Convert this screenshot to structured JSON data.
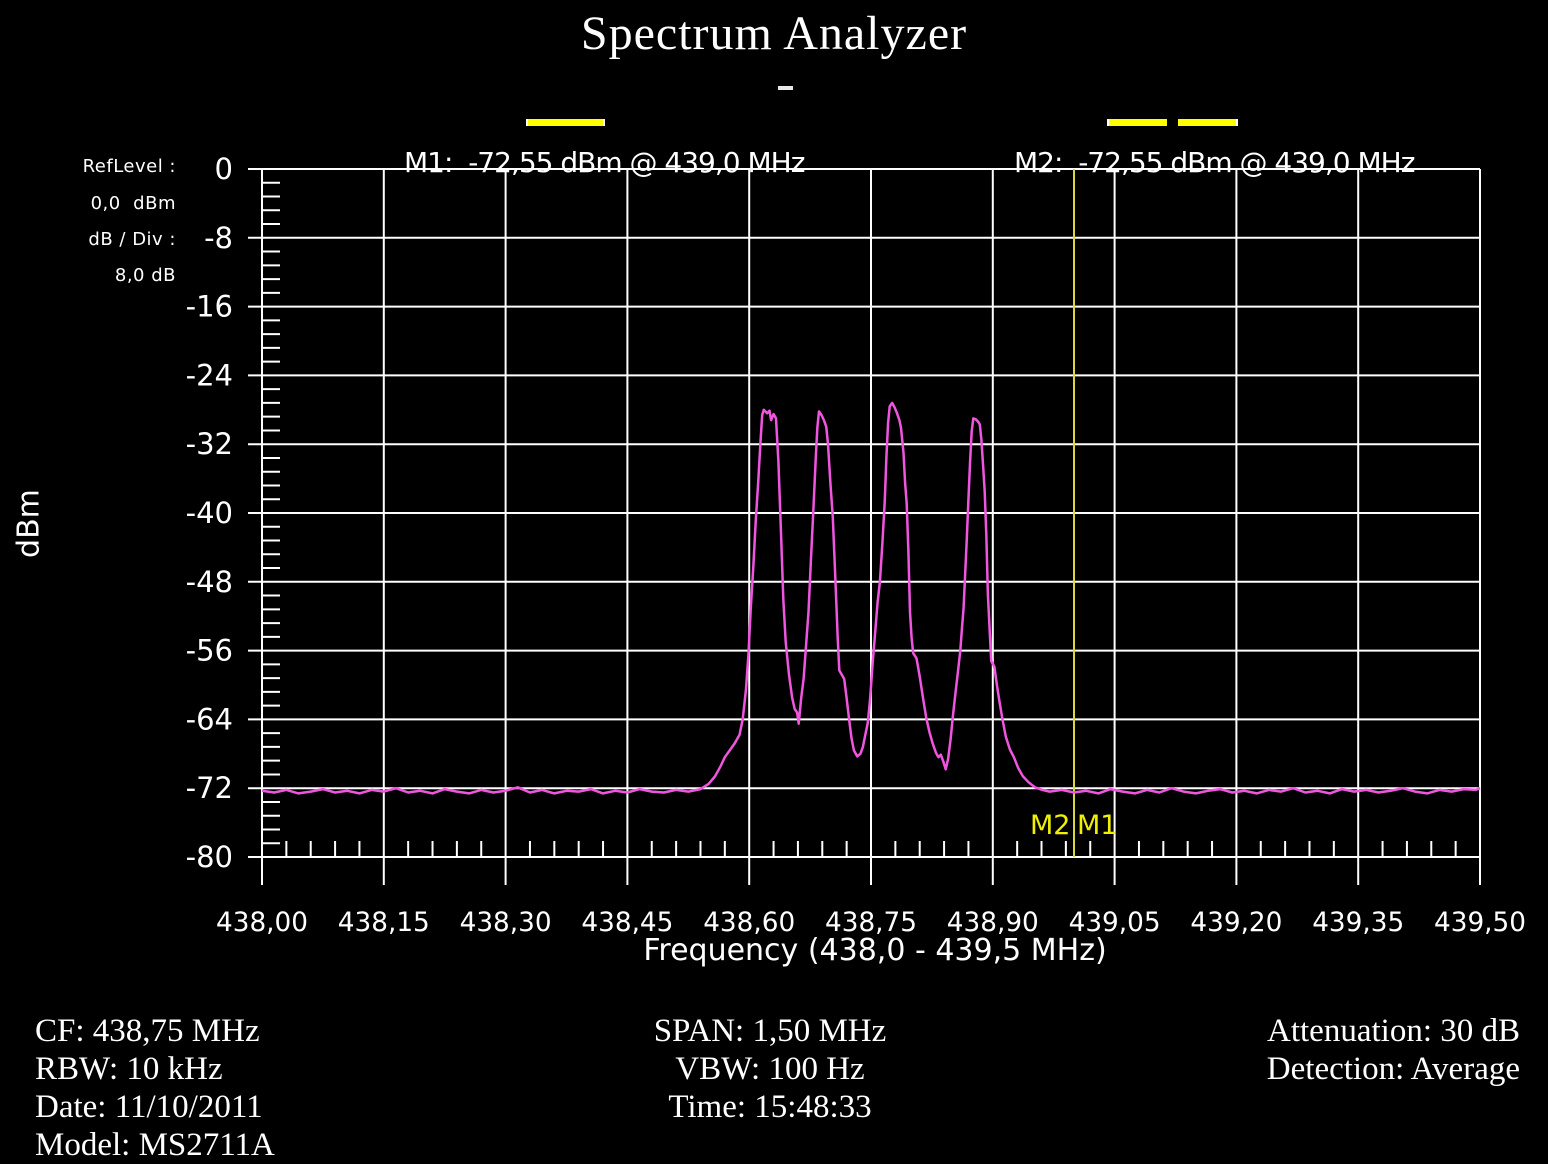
{
  "title": "Spectrum Analyzer",
  "colors": {
    "background": "#000000",
    "grid": "#ffffff",
    "text": "#ffffff",
    "trace": "#f055e0",
    "marker_line": "#d8d83a",
    "marker_accent": "#ffff00"
  },
  "markers": {
    "m1_readout": "M1:  -72,55 dBm @ 439,0 MHz",
    "m2_readout": "M2:  -72,55 dBm @ 439,0 MHz",
    "m2_flag": "M2",
    "m1_flag": "M1"
  },
  "left_panel": {
    "ref_level_label": "RefLevel :",
    "ref_level_value": "0,0  dBm",
    "db_div_label": "dB / Div :",
    "db_div_value": "8,0 dB"
  },
  "footer": {
    "left": [
      "CF: 438,75 MHz",
      "RBW: 10 kHz",
      "Date: 11/10/2011",
      "Model: MS2711A"
    ],
    "center": [
      "SPAN: 1,50 MHz",
      "VBW: 100 Hz",
      "Time: 15:48:33"
    ],
    "right": [
      "Attenuation: 30 dB",
      "Detection: Average"
    ]
  },
  "chart_data": {
    "type": "line",
    "title": "Spectrum Analyzer",
    "xlabel": "Frequency (438,0 - 439,5 MHz)",
    "ylabel": "dBm",
    "xlim": [
      438.0,
      439.5
    ],
    "ylim": [
      -80,
      0
    ],
    "grid": true,
    "minor_ticks_per_division": 5,
    "x_ticks": {
      "values": [
        438.0,
        438.15,
        438.3,
        438.45,
        438.6,
        438.75,
        438.9,
        439.05,
        439.2,
        439.35,
        439.5
      ],
      "labels": [
        "438,00",
        "438,15",
        "438,30",
        "438,45",
        "438,60",
        "438,75",
        "438,90",
        "439,05",
        "439,20",
        "439,35",
        "439,50"
      ]
    },
    "y_ticks": {
      "values": [
        0,
        -8,
        -16,
        -24,
        -32,
        -40,
        -48,
        -56,
        -64,
        -72,
        -80
      ],
      "labels": [
        "0",
        "-8",
        "-16",
        "-24",
        "-32",
        "-40",
        "-48",
        "-56",
        "-64",
        "-72",
        "-80"
      ]
    },
    "ref_level_dbm": 0.0,
    "db_per_div": 8.0,
    "marker_line_mhz": 439.0,
    "noise_floor_dbm": -72.5,
    "peaks_mhz_dbm": [
      [
        438.62,
        -28.0
      ],
      [
        438.69,
        -28.2
      ],
      [
        438.78,
        -27.1
      ],
      [
        438.87,
        -29.0
      ]
    ],
    "series": [
      {
        "name": "trace",
        "color": "#f055e0",
        "points": [
          [
            438.0,
            -72.3
          ],
          [
            438.015,
            -72.5
          ],
          [
            438.03,
            -72.2
          ],
          [
            438.045,
            -72.6
          ],
          [
            438.06,
            -72.4
          ],
          [
            438.075,
            -72.1
          ],
          [
            438.09,
            -72.5
          ],
          [
            438.105,
            -72.3
          ],
          [
            438.12,
            -72.6
          ],
          [
            438.135,
            -72.2
          ],
          [
            438.15,
            -72.4
          ],
          [
            438.165,
            -72.0
          ],
          [
            438.18,
            -72.5
          ],
          [
            438.195,
            -72.3
          ],
          [
            438.21,
            -72.6
          ],
          [
            438.225,
            -72.1
          ],
          [
            438.24,
            -72.4
          ],
          [
            438.255,
            -72.6
          ],
          [
            438.27,
            -72.2
          ],
          [
            438.285,
            -72.5
          ],
          [
            438.3,
            -72.3
          ],
          [
            438.315,
            -71.9
          ],
          [
            438.33,
            -72.5
          ],
          [
            438.345,
            -72.2
          ],
          [
            438.36,
            -72.6
          ],
          [
            438.375,
            -72.3
          ],
          [
            438.39,
            -72.4
          ],
          [
            438.405,
            -72.1
          ],
          [
            438.42,
            -72.6
          ],
          [
            438.435,
            -72.3
          ],
          [
            438.45,
            -72.5
          ],
          [
            438.465,
            -72.1
          ],
          [
            438.48,
            -72.4
          ],
          [
            438.495,
            -72.5
          ],
          [
            438.51,
            -72.2
          ],
          [
            438.525,
            -72.4
          ],
          [
            438.54,
            -72.1
          ],
          [
            438.55,
            -71.5
          ],
          [
            438.558,
            -70.6
          ],
          [
            438.565,
            -69.4
          ],
          [
            438.57,
            -68.4
          ],
          [
            438.576,
            -67.6
          ],
          [
            438.582,
            -66.8
          ],
          [
            438.588,
            -65.8
          ],
          [
            438.592,
            -64.0
          ],
          [
            438.596,
            -60.5
          ],
          [
            438.599,
            -56.5
          ],
          [
            438.602,
            -51.0
          ],
          [
            438.605,
            -46.3
          ],
          [
            438.608,
            -41.0
          ],
          [
            438.611,
            -36.6
          ],
          [
            438.614,
            -31.5
          ],
          [
            438.616,
            -28.6
          ],
          [
            438.618,
            -28.0
          ],
          [
            438.622,
            -28.4
          ],
          [
            438.625,
            -28.1
          ],
          [
            438.627,
            -29.2
          ],
          [
            438.63,
            -28.5
          ],
          [
            438.633,
            -29.0
          ],
          [
            438.636,
            -34.0
          ],
          [
            438.639,
            -42.0
          ],
          [
            438.642,
            -50.0
          ],
          [
            438.645,
            -55.0
          ],
          [
            438.649,
            -58.8
          ],
          [
            438.653,
            -61.5
          ],
          [
            438.656,
            -62.8
          ],
          [
            438.659,
            -63.2
          ],
          [
            438.661,
            -64.5
          ],
          [
            438.664,
            -61.5
          ],
          [
            438.667,
            -59.3
          ],
          [
            438.67,
            -55.5
          ],
          [
            438.673,
            -51.5
          ],
          [
            438.676,
            -45.5
          ],
          [
            438.679,
            -39.8
          ],
          [
            438.682,
            -33.5
          ],
          [
            438.684,
            -30.0
          ],
          [
            438.686,
            -28.2
          ],
          [
            438.689,
            -28.6
          ],
          [
            438.692,
            -29.2
          ],
          [
            438.695,
            -30.0
          ],
          [
            438.697,
            -32.0
          ],
          [
            438.7,
            -36.5
          ],
          [
            438.703,
            -40.5
          ],
          [
            438.706,
            -47.5
          ],
          [
            438.709,
            -54.5
          ],
          [
            438.711,
            -58.3
          ],
          [
            438.714,
            -58.8
          ],
          [
            438.717,
            -59.3
          ],
          [
            438.72,
            -61.5
          ],
          [
            438.723,
            -64.0
          ],
          [
            438.726,
            -66.2
          ],
          [
            438.729,
            -67.6
          ],
          [
            438.733,
            -68.3
          ],
          [
            438.737,
            -68.0
          ],
          [
            438.74,
            -67.2
          ],
          [
            438.743,
            -65.8
          ],
          [
            438.746,
            -64.4
          ],
          [
            438.749,
            -61.5
          ],
          [
            438.752,
            -57.5
          ],
          [
            438.755,
            -54.0
          ],
          [
            438.758,
            -50.5
          ],
          [
            438.761,
            -48.0
          ],
          [
            438.764,
            -43.5
          ],
          [
            438.767,
            -38.5
          ],
          [
            438.769,
            -33.5
          ],
          [
            438.771,
            -29.5
          ],
          [
            438.773,
            -27.6
          ],
          [
            438.776,
            -27.2
          ],
          [
            438.779,
            -27.7
          ],
          [
            438.782,
            -28.4
          ],
          [
            438.785,
            -29.2
          ],
          [
            438.787,
            -30.1
          ],
          [
            438.79,
            -33.0
          ],
          [
            438.792,
            -36.5
          ],
          [
            438.794,
            -38.9
          ],
          [
            438.796,
            -44.5
          ],
          [
            438.798,
            -51.5
          ],
          [
            438.8,
            -54.5
          ],
          [
            438.802,
            -56.3
          ],
          [
            438.806,
            -56.9
          ],
          [
            438.81,
            -59.0
          ],
          [
            438.814,
            -61.5
          ],
          [
            438.818,
            -63.8
          ],
          [
            438.822,
            -65.5
          ],
          [
            438.826,
            -66.8
          ],
          [
            438.83,
            -67.9
          ],
          [
            438.833,
            -68.4
          ],
          [
            438.836,
            -68.1
          ],
          [
            438.839,
            -68.9
          ],
          [
            438.842,
            -69.8
          ],
          [
            438.845,
            -68.6
          ],
          [
            438.848,
            -66.3
          ],
          [
            438.851,
            -63.5
          ],
          [
            438.854,
            -61.0
          ],
          [
            438.857,
            -58.5
          ],
          [
            438.86,
            -56.0
          ],
          [
            438.862,
            -53.5
          ],
          [
            438.864,
            -51.0
          ],
          [
            438.866,
            -47.0
          ],
          [
            438.868,
            -43.0
          ],
          [
            438.87,
            -38.5
          ],
          [
            438.872,
            -34.0
          ],
          [
            438.874,
            -30.5
          ],
          [
            438.876,
            -29.0
          ],
          [
            438.879,
            -29.1
          ],
          [
            438.882,
            -29.4
          ],
          [
            438.884,
            -29.7
          ],
          [
            438.886,
            -31.5
          ],
          [
            438.888,
            -34.5
          ],
          [
            438.89,
            -37.5
          ],
          [
            438.892,
            -42.5
          ],
          [
            438.894,
            -49.5
          ],
          [
            438.896,
            -53.5
          ],
          [
            438.898,
            -57.2
          ],
          [
            438.902,
            -57.9
          ],
          [
            438.905,
            -60.0
          ],
          [
            438.908,
            -61.8
          ],
          [
            438.912,
            -64.0
          ],
          [
            438.916,
            -66.0
          ],
          [
            438.921,
            -67.5
          ],
          [
            438.926,
            -68.4
          ],
          [
            438.931,
            -69.6
          ],
          [
            438.937,
            -70.6
          ],
          [
            438.944,
            -71.3
          ],
          [
            438.952,
            -71.9
          ],
          [
            438.961,
            -72.2
          ],
          [
            438.97,
            -72.4
          ],
          [
            438.985,
            -72.2
          ],
          [
            439.0,
            -72.5
          ],
          [
            439.015,
            -72.3
          ],
          [
            439.03,
            -72.6
          ],
          [
            439.045,
            -72.1
          ],
          [
            439.06,
            -72.4
          ],
          [
            439.075,
            -72.6
          ],
          [
            439.09,
            -72.2
          ],
          [
            439.105,
            -72.5
          ],
          [
            439.12,
            -72.0
          ],
          [
            439.135,
            -72.4
          ],
          [
            439.15,
            -72.6
          ],
          [
            439.165,
            -72.3
          ],
          [
            439.18,
            -72.1
          ],
          [
            439.195,
            -72.5
          ],
          [
            439.21,
            -72.3
          ],
          [
            439.225,
            -72.6
          ],
          [
            439.24,
            -72.2
          ],
          [
            439.255,
            -72.4
          ],
          [
            439.27,
            -72.0
          ],
          [
            439.285,
            -72.5
          ],
          [
            439.3,
            -72.3
          ],
          [
            439.315,
            -72.6
          ],
          [
            439.33,
            -72.1
          ],
          [
            439.345,
            -72.4
          ],
          [
            439.36,
            -72.2
          ],
          [
            439.375,
            -72.5
          ],
          [
            439.39,
            -72.3
          ],
          [
            439.405,
            -72.0
          ],
          [
            439.42,
            -72.4
          ],
          [
            439.435,
            -72.6
          ],
          [
            439.45,
            -72.2
          ],
          [
            439.465,
            -72.4
          ],
          [
            439.48,
            -72.1
          ],
          [
            439.495,
            -72.2
          ],
          [
            439.5,
            -72.0
          ]
        ]
      }
    ]
  }
}
